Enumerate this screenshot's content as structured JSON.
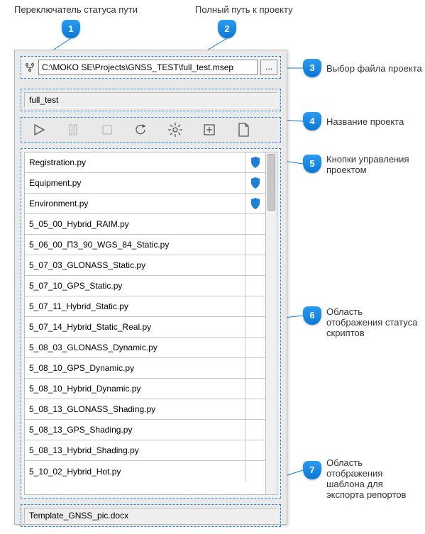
{
  "labels": {
    "l1": "Переключатель статуса пути",
    "l2": "Полный путь к проекту",
    "l3": "Выбор файла проекта",
    "l4": "Название проекта",
    "l5": "Кнопки управления проектом",
    "l6": "Область отображения статуса скриптов",
    "l7": "Область отображения шаблона для экспорта репортов"
  },
  "callouts": {
    "b1": "1",
    "b2": "2",
    "b3": "3",
    "b4": "4",
    "b5": "5",
    "b6": "6",
    "b7": "7"
  },
  "path": "C:\\MOKO SE\\Projects\\GNSS_TEST\\full_test.msep",
  "browse": "...",
  "project_name": "full_test",
  "template": "Template_GNSS_pic.docx",
  "scripts": [
    {
      "name": "Registration.py",
      "shield": true
    },
    {
      "name": "Equipment.py",
      "shield": true
    },
    {
      "name": "Environment.py",
      "shield": true
    },
    {
      "name": "5_05_00_Hybrid_RAIM.py",
      "shield": false
    },
    {
      "name": "5_06_00_ПЗ_90_WGS_84_Static.py",
      "shield": false
    },
    {
      "name": "5_07_03_GLONASS_Static.py",
      "shield": false
    },
    {
      "name": "5_07_10_GPS_Static.py",
      "shield": false
    },
    {
      "name": "5_07_11_Hybrid_Static.py",
      "shield": false
    },
    {
      "name": "5_07_14_Hybrid_Static_Real.py",
      "shield": false
    },
    {
      "name": "5_08_03_GLONASS_Dynamic.py",
      "shield": false
    },
    {
      "name": "5_08_10_GPS_Dynamic.py",
      "shield": false
    },
    {
      "name": "5_08_10_Hybrid_Dynamic.py",
      "shield": false
    },
    {
      "name": "5_08_13_GLONASS_Shading.py",
      "shield": false
    },
    {
      "name": "5_08_13_GPS_Shading.py",
      "shield": false
    },
    {
      "name": "5_08_13_Hybrid_Shading.py",
      "shield": false
    },
    {
      "name": "5_10_02_Hybrid_Hot.py",
      "shield": false
    }
  ],
  "colors": {
    "badge_top": "#2b9bf0",
    "badge_bottom": "#0b78d6",
    "dash": "#2b8adf",
    "panel_bg": "#e9e9e9",
    "shield": "#1e7fd6",
    "callout_line": "#1278d4"
  }
}
